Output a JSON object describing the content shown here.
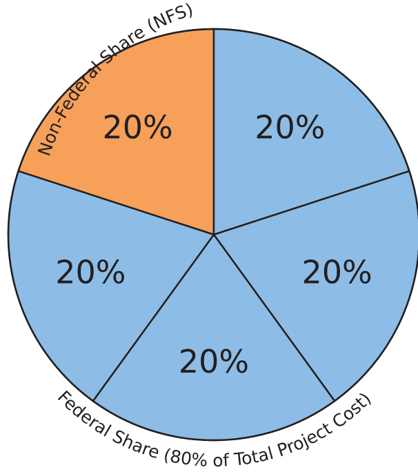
{
  "chart_data": {
    "type": "pie",
    "slices": [
      {
        "label": "20%",
        "value": 20,
        "color": "#f6a05a",
        "group": "Non-Federal Share (NFS)"
      },
      {
        "label": "20%",
        "value": 20,
        "color": "#8dbde6",
        "group": "Federal Share (80% of Total Project Cost)"
      },
      {
        "label": "20%",
        "value": 20,
        "color": "#8dbde6",
        "group": "Federal Share (80% of Total Project Cost)"
      },
      {
        "label": "20%",
        "value": 20,
        "color": "#8dbde6",
        "group": "Federal Share (80% of Total Project Cost)"
      },
      {
        "label": "20%",
        "value": 20,
        "color": "#8dbde6",
        "group": "Federal Share (80% of Total Project Cost)"
      }
    ],
    "annotations": {
      "nfs": "Non-Federal Share (NFS)",
      "federal": "Federal Share (80% of Total Project Cost)"
    },
    "outline_color": "#231f20"
  }
}
